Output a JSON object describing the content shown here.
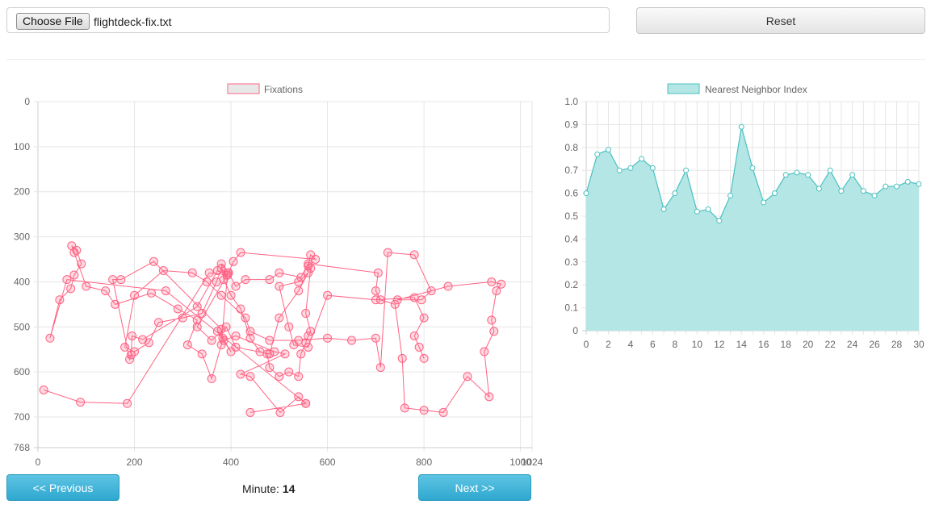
{
  "file_input": {
    "button_label": "Choose File",
    "file_name": "flightdeck-fix.txt"
  },
  "toolbar": {
    "reset_label": "Reset"
  },
  "navigation": {
    "prev_label": "<< Previous",
    "next_label": "Next >>",
    "minute_label": "Minute:",
    "minute_value": "14"
  },
  "colors": {
    "fixation": "#ff6384",
    "nni_stroke": "#4bc0c0",
    "nni_fill": "#b4e6e6",
    "nav_button": "#3ab3d9"
  },
  "chart_data": [
    {
      "type": "scatter",
      "legend": "Fixations",
      "legend_position": "top",
      "connected": true,
      "y_reversed": true,
      "xlim": [
        0,
        1024
      ],
      "ylim": [
        0,
        768
      ],
      "x_ticks": [
        "0",
        "200",
        "400",
        "600",
        "800",
        "1000",
        "1024"
      ],
      "y_ticks": [
        "0",
        "100",
        "200",
        "300",
        "400",
        "500",
        "600",
        "700",
        "768"
      ],
      "grid": true,
      "points": [
        [
          12,
          640
        ],
        [
          88,
          667
        ],
        [
          185,
          670
        ],
        [
          355,
          380
        ],
        [
          393,
          385
        ],
        [
          372,
          375
        ],
        [
          330,
          455
        ],
        [
          217,
          528
        ],
        [
          195,
          520
        ],
        [
          193,
          562
        ],
        [
          190,
          572
        ],
        [
          155,
          395
        ],
        [
          172,
          395
        ],
        [
          240,
          355
        ],
        [
          380,
          505
        ],
        [
          383,
          525
        ],
        [
          400,
          555
        ],
        [
          372,
          510
        ],
        [
          385,
          530
        ],
        [
          410,
          520
        ],
        [
          490,
          555
        ],
        [
          512,
          560
        ],
        [
          420,
          605
        ],
        [
          440,
          610
        ],
        [
          502,
          690
        ],
        [
          540,
          655
        ],
        [
          555,
          670
        ],
        [
          440,
          690
        ],
        [
          555,
          670
        ],
        [
          265,
          420
        ],
        [
          60,
          395
        ],
        [
          25,
          525
        ],
        [
          45,
          440
        ],
        [
          68,
          415
        ],
        [
          75,
          385
        ],
        [
          90,
          360
        ],
        [
          80,
          330
        ],
        [
          70,
          320
        ],
        [
          75,
          335
        ],
        [
          100,
          410
        ],
        [
          140,
          420
        ],
        [
          160,
          450
        ],
        [
          235,
          425
        ],
        [
          290,
          460
        ],
        [
          330,
          485
        ],
        [
          310,
          540
        ],
        [
          340,
          560
        ],
        [
          360,
          615
        ],
        [
          380,
          540
        ],
        [
          393,
          380
        ],
        [
          380,
          360
        ],
        [
          385,
          395
        ],
        [
          400,
          430
        ],
        [
          420,
          460
        ],
        [
          440,
          525
        ],
        [
          460,
          555
        ],
        [
          475,
          560
        ],
        [
          480,
          590
        ],
        [
          500,
          610
        ],
        [
          520,
          600
        ],
        [
          540,
          610
        ],
        [
          545,
          560
        ],
        [
          555,
          535
        ],
        [
          560,
          520
        ],
        [
          565,
          510
        ],
        [
          555,
          470
        ],
        [
          565,
          370
        ],
        [
          560,
          365
        ],
        [
          565,
          340
        ],
        [
          575,
          350
        ],
        [
          420,
          335
        ],
        [
          405,
          355
        ],
        [
          395,
          380
        ],
        [
          410,
          410
        ],
        [
          430,
          395
        ],
        [
          480,
          395
        ],
        [
          500,
          380
        ],
        [
          545,
          390
        ],
        [
          560,
          360
        ],
        [
          705,
          380
        ],
        [
          700,
          420
        ],
        [
          710,
          440
        ],
        [
          740,
          450
        ],
        [
          755,
          570
        ],
        [
          760,
          680
        ],
        [
          800,
          685
        ],
        [
          840,
          690
        ],
        [
          890,
          610
        ],
        [
          935,
          655
        ],
        [
          925,
          555
        ],
        [
          945,
          510
        ],
        [
          940,
          485
        ],
        [
          950,
          420
        ],
        [
          960,
          405
        ],
        [
          940,
          400
        ],
        [
          850,
          410
        ],
        [
          745,
          440
        ],
        [
          795,
          440
        ],
        [
          815,
          420
        ],
        [
          780,
          340
        ],
        [
          725,
          335
        ],
        [
          710,
          590
        ],
        [
          700,
          525
        ],
        [
          650,
          530
        ],
        [
          600,
          525
        ],
        [
          540,
          530
        ],
        [
          480,
          530
        ],
        [
          440,
          510
        ],
        [
          430,
          480
        ],
        [
          380,
          430
        ],
        [
          350,
          400
        ],
        [
          320,
          380
        ],
        [
          260,
          375
        ],
        [
          200,
          430
        ],
        [
          180,
          545
        ],
        [
          200,
          555
        ],
        [
          230,
          535
        ],
        [
          250,
          490
        ],
        [
          300,
          480
        ],
        [
          340,
          470
        ],
        [
          370,
          400
        ],
        [
          380,
          370
        ],
        [
          392,
          385
        ],
        [
          330,
          500
        ],
        [
          360,
          530
        ],
        [
          390,
          500
        ],
        [
          410,
          545
        ],
        [
          480,
          560
        ],
        [
          500,
          480
        ],
        [
          540,
          420
        ],
        [
          560,
          380
        ],
        [
          540,
          400
        ],
        [
          500,
          410
        ],
        [
          520,
          500
        ],
        [
          530,
          540
        ],
        [
          560,
          545
        ],
        [
          600,
          430
        ],
        [
          700,
          440
        ],
        [
          780,
          435
        ],
        [
          800,
          480
        ],
        [
          780,
          520
        ],
        [
          790,
          545
        ],
        [
          800,
          570
        ]
      ]
    },
    {
      "type": "area",
      "legend": "Nearest Neighbor Index",
      "legend_position": "top",
      "xlim": [
        0,
        30
      ],
      "ylim": [
        0,
        1.0
      ],
      "x_ticks": [
        "0",
        "2",
        "4",
        "6",
        "8",
        "10",
        "12",
        "14",
        "16",
        "18",
        "20",
        "22",
        "24",
        "26",
        "28",
        "30"
      ],
      "y_ticks": [
        "0",
        "0.1",
        "0.2",
        "0.3",
        "0.4",
        "0.5",
        "0.6",
        "0.7",
        "0.8",
        "0.9",
        "1.0"
      ],
      "grid": true,
      "x": [
        0,
        1,
        2,
        3,
        4,
        5,
        6,
        7,
        8,
        9,
        10,
        11,
        12,
        13,
        14,
        15,
        16,
        17,
        18,
        19,
        20,
        21,
        22,
        23,
        24,
        25,
        26,
        27,
        28,
        29,
        30
      ],
      "values": [
        0.6,
        0.77,
        0.79,
        0.7,
        0.71,
        0.75,
        0.71,
        0.53,
        0.6,
        0.7,
        0.52,
        0.53,
        0.48,
        0.59,
        0.89,
        0.71,
        0.56,
        0.6,
        0.68,
        0.69,
        0.68,
        0.62,
        0.7,
        0.61,
        0.68,
        0.61,
        0.59,
        0.63,
        0.63,
        0.65,
        0.64
      ]
    }
  ]
}
